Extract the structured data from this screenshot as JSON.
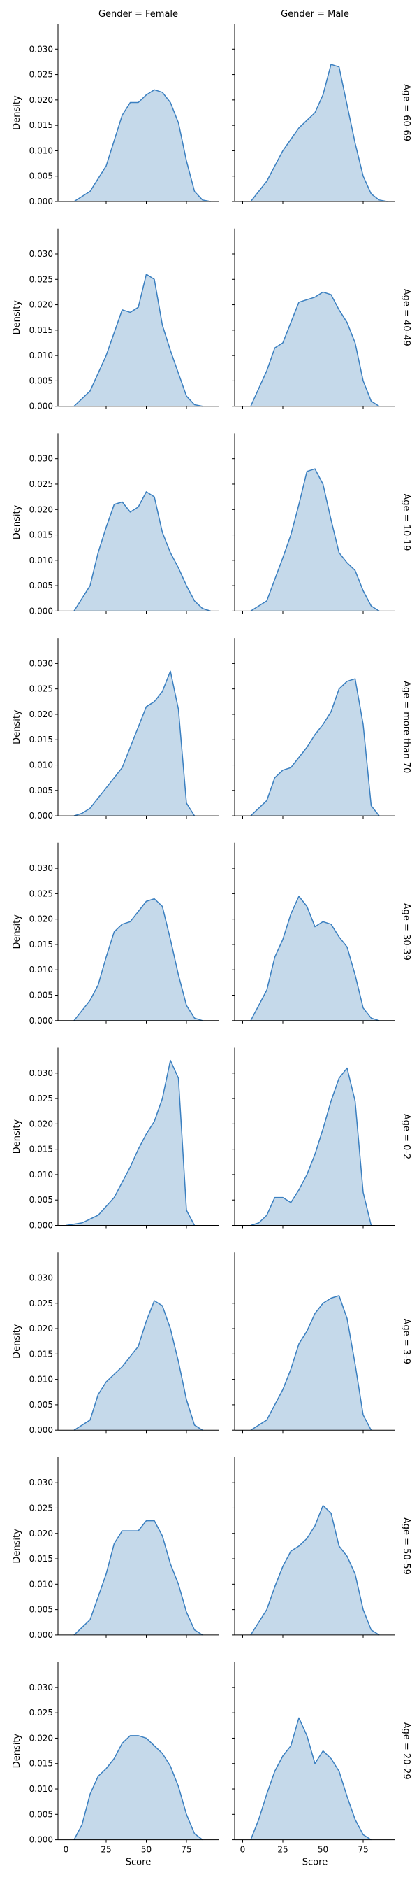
{
  "chart_data": {
    "type": "area",
    "chart_kind": "kde-facet-grid",
    "col_titles": [
      "Gender = Female",
      "Gender = Male"
    ],
    "row_titles": [
      "Age = 60-69",
      "Age = 40-49",
      "Age = 10-19",
      "Age = more than 70",
      "Age = 30-39",
      "Age = 0-2",
      "Age = 3-9",
      "Age = 50-59",
      "Age = 20-29"
    ],
    "xlabel": "Score",
    "ylabel": "Density",
    "xlim": [
      -5,
      95
    ],
    "ylim": [
      0,
      0.035
    ],
    "xticks": [
      0,
      25,
      50,
      75
    ],
    "xtick_labels": [
      "0",
      "25",
      "50",
      "75"
    ],
    "yticks": [
      0,
      0.005,
      0.01,
      0.015,
      0.02,
      0.025,
      0.03
    ],
    "ytick_labels": [
      "0.000",
      "0.005",
      "0.010",
      "0.015",
      "0.020",
      "0.025",
      "0.030"
    ],
    "grid": false,
    "fill_color": "#c5d9ea",
    "line_color": "#3a7fc0",
    "panels": [
      [
        {
          "x": [
            5,
            15,
            25,
            35,
            40,
            45,
            50,
            55,
            60,
            65,
            70,
            75,
            80,
            85,
            90
          ],
          "y": [
            0.0,
            0.002,
            0.007,
            0.017,
            0.0195,
            0.0195,
            0.021,
            0.022,
            0.0215,
            0.0195,
            0.0155,
            0.008,
            0.002,
            0.0003,
            0.0
          ]
        },
        {
          "x": [
            5,
            15,
            25,
            35,
            45,
            50,
            55,
            60,
            65,
            70,
            75,
            80,
            85,
            90
          ],
          "y": [
            0.0,
            0.004,
            0.01,
            0.0145,
            0.0175,
            0.021,
            0.027,
            0.0265,
            0.019,
            0.0115,
            0.005,
            0.0015,
            0.0003,
            0.0
          ]
        }
      ],
      [
        {
          "x": [
            5,
            15,
            25,
            35,
            40,
            45,
            50,
            55,
            60,
            65,
            70,
            75,
            80,
            85
          ],
          "y": [
            0.0,
            0.003,
            0.01,
            0.019,
            0.0185,
            0.0195,
            0.026,
            0.025,
            0.016,
            0.011,
            0.0065,
            0.002,
            0.0003,
            0.0
          ]
        },
        {
          "x": [
            5,
            15,
            20,
            25,
            30,
            35,
            40,
            45,
            50,
            55,
            60,
            65,
            70,
            75,
            80,
            85
          ],
          "y": [
            0.0,
            0.007,
            0.0115,
            0.0125,
            0.0165,
            0.0205,
            0.021,
            0.0215,
            0.0225,
            0.022,
            0.019,
            0.0165,
            0.0125,
            0.005,
            0.001,
            0.0
          ]
        }
      ],
      [
        {
          "x": [
            5,
            15,
            20,
            25,
            30,
            35,
            40,
            45,
            50,
            55,
            60,
            65,
            70,
            75,
            80,
            85,
            90
          ],
          "y": [
            0.0,
            0.005,
            0.0115,
            0.0165,
            0.021,
            0.0215,
            0.0195,
            0.0205,
            0.0235,
            0.0225,
            0.0155,
            0.0115,
            0.0085,
            0.005,
            0.002,
            0.0005,
            0.0
          ]
        },
        {
          "x": [
            5,
            15,
            25,
            30,
            35,
            40,
            45,
            50,
            55,
            60,
            65,
            70,
            75,
            80,
            85
          ],
          "y": [
            0.0,
            0.002,
            0.0105,
            0.015,
            0.021,
            0.0275,
            0.028,
            0.025,
            0.018,
            0.0115,
            0.0095,
            0.008,
            0.004,
            0.001,
            0.0
          ]
        }
      ],
      [
        {
          "x": [
            5,
            10,
            15,
            25,
            35,
            40,
            45,
            50,
            55,
            60,
            65,
            70,
            75,
            80
          ],
          "y": [
            0.0,
            0.0005,
            0.0015,
            0.0055,
            0.0095,
            0.0135,
            0.0175,
            0.0215,
            0.0225,
            0.0245,
            0.0285,
            0.021,
            0.0025,
            0.0
          ],
          "display_y": [
            0.0,
            0.0005,
            0.0015,
            0.0055,
            0.0095,
            0.0135,
            0.0175,
            0.0215,
            0.0225,
            0.0245,
            0.0285,
            0.021,
            0.0025,
            0.0
          ]
        },
        {
          "x": [
            5,
            15,
            20,
            25,
            30,
            35,
            40,
            45,
            50,
            55,
            60,
            65,
            70,
            75,
            80,
            85
          ],
          "y": [
            0.0,
            0.003,
            0.0075,
            0.009,
            0.0095,
            0.0115,
            0.0135,
            0.016,
            0.018,
            0.0205,
            0.025,
            0.0265,
            0.027,
            0.018,
            0.002,
            0.0
          ]
        }
      ],
      [
        {
          "x": [
            5,
            15,
            20,
            25,
            30,
            35,
            40,
            45,
            50,
            55,
            60,
            65,
            70,
            75,
            80,
            85
          ],
          "y": [
            0.0,
            0.004,
            0.007,
            0.0125,
            0.0175,
            0.019,
            0.0195,
            0.0215,
            0.0235,
            0.024,
            0.0225,
            0.016,
            0.009,
            0.003,
            0.0005,
            0.0
          ]
        },
        {
          "x": [
            5,
            15,
            20,
            25,
            30,
            35,
            40,
            45,
            50,
            55,
            60,
            65,
            70,
            75,
            80,
            85
          ],
          "y": [
            0.0,
            0.006,
            0.0125,
            0.016,
            0.021,
            0.0245,
            0.0225,
            0.0185,
            0.0195,
            0.019,
            0.0165,
            0.0145,
            0.009,
            0.0025,
            0.0005,
            0.0
          ]
        }
      ],
      [
        {
          "x": [
            0,
            10,
            20,
            30,
            40,
            45,
            50,
            55,
            60,
            65,
            70,
            75,
            80
          ],
          "y": [
            0.0,
            0.0005,
            0.002,
            0.0055,
            0.0115,
            0.015,
            0.018,
            0.0205,
            0.025,
            0.0325,
            0.029,
            0.003,
            0.0
          ]
        },
        {
          "x": [
            5,
            10,
            15,
            20,
            25,
            30,
            35,
            40,
            45,
            50,
            55,
            60,
            65,
            70,
            75,
            80
          ],
          "y": [
            0.0,
            0.0005,
            0.002,
            0.0055,
            0.0055,
            0.0045,
            0.007,
            0.01,
            0.014,
            0.019,
            0.0245,
            0.029,
            0.031,
            0.0245,
            0.0065,
            0.0
          ]
        }
      ],
      [
        {
          "x": [
            5,
            15,
            20,
            25,
            30,
            35,
            40,
            45,
            50,
            55,
            60,
            65,
            70,
            75,
            80,
            85
          ],
          "y": [
            0.0,
            0.002,
            0.007,
            0.0095,
            0.011,
            0.0125,
            0.0145,
            0.0165,
            0.0215,
            0.0255,
            0.0245,
            0.02,
            0.0135,
            0.006,
            0.001,
            0.0
          ]
        },
        {
          "x": [
            5,
            15,
            25,
            30,
            35,
            40,
            45,
            50,
            55,
            60,
            65,
            70,
            75,
            80
          ],
          "y": [
            0.0,
            0.002,
            0.008,
            0.012,
            0.017,
            0.0195,
            0.023,
            0.025,
            0.026,
            0.0265,
            0.022,
            0.013,
            0.003,
            0.0
          ]
        }
      ],
      [
        {
          "x": [
            5,
            15,
            20,
            25,
            30,
            35,
            40,
            45,
            50,
            55,
            60,
            65,
            70,
            75,
            80,
            85
          ],
          "y": [
            0.0,
            0.003,
            0.0075,
            0.012,
            0.018,
            0.0205,
            0.0205,
            0.0205,
            0.0225,
            0.0225,
            0.0195,
            0.014,
            0.01,
            0.0045,
            0.001,
            0.0
          ]
        },
        {
          "x": [
            5,
            15,
            20,
            25,
            30,
            35,
            40,
            45,
            50,
            55,
            60,
            65,
            70,
            75,
            80,
            85
          ],
          "y": [
            0.0,
            0.005,
            0.0095,
            0.0135,
            0.0165,
            0.0175,
            0.019,
            0.0215,
            0.0255,
            0.024,
            0.0175,
            0.0155,
            0.012,
            0.005,
            0.001,
            0.0
          ]
        }
      ],
      [
        {
          "x": [
            5,
            10,
            15,
            20,
            25,
            30,
            35,
            40,
            45,
            50,
            55,
            60,
            65,
            70,
            75,
            80,
            85
          ],
          "y": [
            0.0,
            0.003,
            0.009,
            0.0125,
            0.014,
            0.016,
            0.019,
            0.0205,
            0.0205,
            0.02,
            0.0185,
            0.017,
            0.0145,
            0.0105,
            0.005,
            0.0012,
            0.0
          ]
        },
        {
          "x": [
            5,
            10,
            15,
            20,
            25,
            30,
            35,
            40,
            45,
            50,
            55,
            60,
            65,
            70,
            75,
            80
          ],
          "y": [
            0.0,
            0.004,
            0.009,
            0.0135,
            0.0165,
            0.0185,
            0.024,
            0.0205,
            0.015,
            0.0175,
            0.016,
            0.0135,
            0.0085,
            0.004,
            0.001,
            0.0
          ]
        }
      ]
    ]
  }
}
